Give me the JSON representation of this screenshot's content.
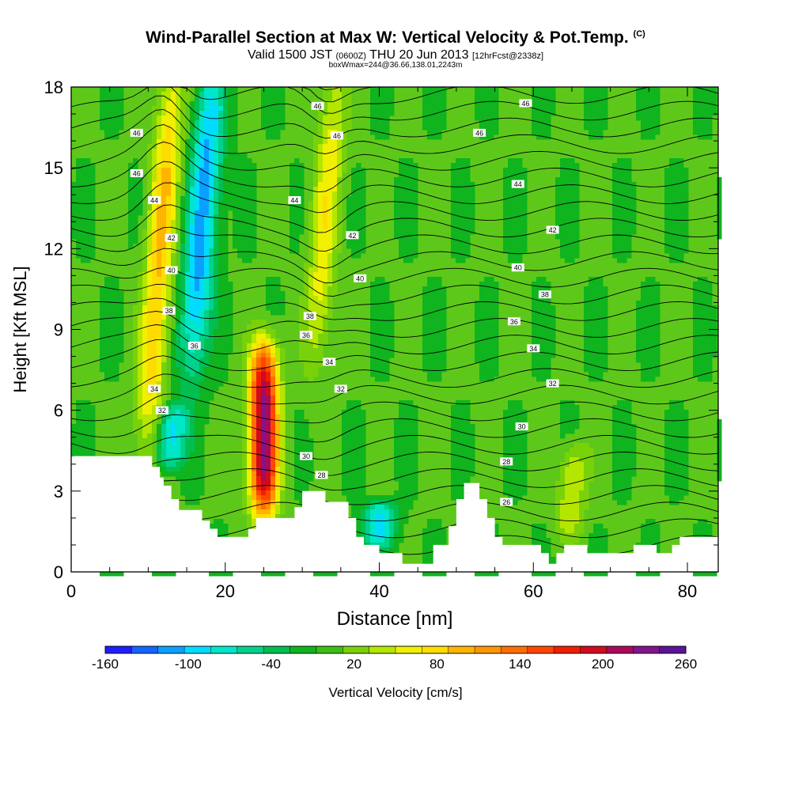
{
  "title": {
    "main": "Wind-Parallel Section at Max W: Vertical Velocity & Pot.Temp.",
    "copyright": "(C)",
    "valid_prefix": "Valid 1500 JST",
    "valid_z": "(0600Z)",
    "valid_date": "THU 20 Jun 2013",
    "forecast": "[12hrFcst@2338z]",
    "box": "boxWmax=244@36.66,138.01,2243m"
  },
  "chart_data": {
    "type": "heatmap",
    "xlabel": "Distance [nm]",
    "ylabel": "Height [Kft MSL]",
    "xlim": [
      0,
      84
    ],
    "ylim": [
      0,
      18
    ],
    "x_ticks": [
      "0",
      "20",
      "40",
      "60",
      "80"
    ],
    "x_tick_values": [
      0,
      20,
      40,
      60,
      80
    ],
    "y_ticks": [
      "0",
      "3",
      "6",
      "9",
      "12",
      "15",
      "18"
    ],
    "y_tick_values": [
      0,
      3,
      6,
      9,
      12,
      15,
      18
    ],
    "colorbar": {
      "label": "Vertical Velocity [cm/s]",
      "tick_labels": [
        "-160",
        "-100",
        "-40",
        "20",
        "80",
        "140",
        "200",
        "260"
      ],
      "tick_values": [
        -160,
        -100,
        -40,
        20,
        80,
        140,
        200,
        260
      ],
      "bins": [
        -160,
        -140,
        -120,
        -100,
        -80,
        -60,
        -40,
        -20,
        0,
        20,
        40,
        60,
        80,
        100,
        120,
        140,
        160,
        180,
        200,
        220,
        240,
        260
      ],
      "colors": [
        "#1e1eff",
        "#1464ff",
        "#0aa0ff",
        "#00dcff",
        "#00e6c8",
        "#00d28c",
        "#00be50",
        "#0fb41e",
        "#3cbe14",
        "#78d20a",
        "#b4e600",
        "#f0f000",
        "#ffdc00",
        "#ffb400",
        "#ff9600",
        "#ff6e00",
        "#ff4600",
        "#f01e00",
        "#d20a1e",
        "#aa0a5a",
        "#82148c",
        "#5a1496"
      ]
    },
    "updraft_cores": [
      {
        "x": 11.5,
        "y_bottom": 5.5,
        "y_top": 18,
        "w_max": 100
      },
      {
        "x": 33,
        "y_bottom": 8.5,
        "y_top": 18,
        "w_max": 70
      },
      {
        "x": 25,
        "y_bottom": 2.5,
        "y_top": 8,
        "w_max": 244
      },
      {
        "x": 65,
        "y_bottom": 1.5,
        "y_top": 4.5,
        "w_max": 60
      }
    ],
    "downdraft_cores": [
      {
        "x": 17,
        "y_bottom": 8,
        "y_top": 18,
        "w_min": -110
      },
      {
        "x": 13,
        "y_bottom": 4,
        "y_top": 6,
        "w_min": -90
      },
      {
        "x": 40,
        "y_bottom": 1,
        "y_top": 2.5,
        "w_min": -90
      }
    ],
    "terrain_kft": [
      [
        0,
        4.3
      ],
      [
        10.5,
        4.3
      ],
      [
        10.5,
        3.9
      ],
      [
        11.5,
        3.9
      ],
      [
        11.5,
        3.5
      ],
      [
        12,
        3.5
      ],
      [
        12,
        3.2
      ],
      [
        13,
        3.2
      ],
      [
        13,
        2.7
      ],
      [
        14,
        2.7
      ],
      [
        14,
        2.3
      ],
      [
        17,
        2.3
      ],
      [
        17,
        1.9
      ],
      [
        18,
        1.9
      ],
      [
        18,
        1.6
      ],
      [
        19,
        1.6
      ],
      [
        19,
        1.3
      ],
      [
        23,
        1.3
      ],
      [
        23,
        1.6
      ],
      [
        24,
        1.6
      ],
      [
        24,
        2.0
      ],
      [
        29,
        2.0
      ],
      [
        29,
        2.4
      ],
      [
        30,
        2.4
      ],
      [
        30,
        3.0
      ],
      [
        33,
        3.0
      ],
      [
        33,
        2.6
      ],
      [
        36,
        2.6
      ],
      [
        36,
        2.0
      ],
      [
        37,
        2.0
      ],
      [
        37,
        1.3
      ],
      [
        38,
        1.3
      ],
      [
        38,
        1.0
      ],
      [
        40,
        1.0
      ],
      [
        40,
        0.7
      ],
      [
        43,
        0.7
      ],
      [
        43,
        0.3
      ],
      [
        47,
        0.3
      ],
      [
        47,
        1.0
      ],
      [
        49,
        1.0
      ],
      [
        49,
        1.7
      ],
      [
        50,
        1.7
      ],
      [
        50,
        2.7
      ],
      [
        51,
        2.7
      ],
      [
        51,
        3.3
      ],
      [
        53,
        3.3
      ],
      [
        53,
        2.7
      ],
      [
        54,
        2.7
      ],
      [
        54,
        2.0
      ],
      [
        55,
        2.0
      ],
      [
        55,
        1.3
      ],
      [
        56,
        1.3
      ],
      [
        56,
        1.0
      ],
      [
        61,
        1.0
      ],
      [
        61,
        0.7
      ],
      [
        62,
        0.7
      ],
      [
        62,
        0.3
      ],
      [
        63,
        0.3
      ],
      [
        63,
        0.7
      ],
      [
        64,
        0.7
      ],
      [
        64,
        1.0
      ],
      [
        67,
        1.0
      ],
      [
        67,
        0.7
      ],
      [
        73,
        0.7
      ],
      [
        73,
        1.0
      ],
      [
        76,
        1.0
      ],
      [
        76,
        0.7
      ],
      [
        78,
        0.7
      ],
      [
        78,
        1.0
      ],
      [
        79,
        1.0
      ],
      [
        79,
        1.3
      ],
      [
        84,
        1.3
      ]
    ],
    "theta_label_positions": [
      {
        "text": "46",
        "x": 8.5,
        "y": 16.3
      },
      {
        "text": "46",
        "x": 8.5,
        "y": 14.8
      },
      {
        "text": "44",
        "x": 10.8,
        "y": 13.8
      },
      {
        "text": "42",
        "x": 13,
        "y": 12.4
      },
      {
        "text": "40",
        "x": 13,
        "y": 11.2
      },
      {
        "text": "38",
        "x": 12.7,
        "y": 9.7
      },
      {
        "text": "36",
        "x": 16,
        "y": 8.4
      },
      {
        "text": "34",
        "x": 10.8,
        "y": 6.8
      },
      {
        "text": "32",
        "x": 11.8,
        "y": 6.0
      },
      {
        "text": "44",
        "x": 29,
        "y": 13.8
      },
      {
        "text": "46",
        "x": 34.5,
        "y": 16.2
      },
      {
        "text": "46",
        "x": 32,
        "y": 17.3
      },
      {
        "text": "42",
        "x": 36.5,
        "y": 12.5
      },
      {
        "text": "40",
        "x": 37.5,
        "y": 10.9
      },
      {
        "text": "38",
        "x": 31,
        "y": 9.5
      },
      {
        "text": "36",
        "x": 30.5,
        "y": 8.8
      },
      {
        "text": "34",
        "x": 33.5,
        "y": 7.8
      },
      {
        "text": "32",
        "x": 35,
        "y": 6.8
      },
      {
        "text": "30",
        "x": 30.5,
        "y": 4.3
      },
      {
        "text": "28",
        "x": 32.5,
        "y": 3.6
      },
      {
        "text": "46",
        "x": 59,
        "y": 17.4
      },
      {
        "text": "46",
        "x": 53,
        "y": 16.3
      },
      {
        "text": "44",
        "x": 58,
        "y": 14.4
      },
      {
        "text": "42",
        "x": 62.5,
        "y": 12.7
      },
      {
        "text": "40",
        "x": 58,
        "y": 11.3
      },
      {
        "text": "38",
        "x": 61.5,
        "y": 10.3
      },
      {
        "text": "36",
        "x": 57.5,
        "y": 9.3
      },
      {
        "text": "34",
        "x": 60,
        "y": 8.3
      },
      {
        "text": "32",
        "x": 62.5,
        "y": 7.0
      },
      {
        "text": "30",
        "x": 58.5,
        "y": 5.4
      },
      {
        "text": "28",
        "x": 56.5,
        "y": 4.1
      },
      {
        "text": "26",
        "x": 56.5,
        "y": 2.6
      }
    ]
  }
}
